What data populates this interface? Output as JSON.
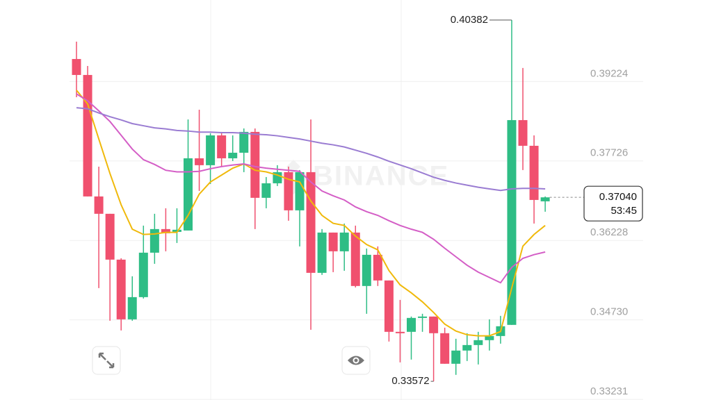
{
  "chart_data": {
    "type": "candlestick",
    "watermark": "BINANCE",
    "up_color": "#2ebd85",
    "down_color": "#f0506e",
    "ylim": [
      0.3322,
      0.4076
    ],
    "yticks": [
      0.39224,
      0.37726,
      0.36228,
      {
        "value": 0.3473,
        "label": "0.34730"
      },
      0.33231
    ],
    "grid": true,
    "open": [
      0.39648,
      0.39347,
      0.37057,
      0.3673,
      0.35866,
      0.3474,
      0.35159,
      0.35997,
      0.36442,
      0.36389,
      0.36415,
      0.37776,
      0.37646,
      0.38208,
      0.37776,
      0.37881,
      0.38274,
      0.37031,
      0.37305,
      0.37515,
      0.36795,
      0.37515,
      0.35617,
      0.36376,
      0.36023,
      0.36376,
      0.35369,
      0.35957,
      0.35473,
      0.34505,
      0.34505,
      0.34767,
      0.34793,
      0.34479,
      0.33903,
      0.34152,
      0.34256,
      0.34348,
      0.34426,
      0.34636,
      0.38496,
      0.38012,
      0.36965
    ],
    "high": [
      0.39975,
      0.39517,
      0.37619,
      0.3673,
      0.35892,
      0.35552,
      0.36507,
      0.3673,
      0.36834,
      0.36834,
      0.38509,
      0.38692,
      0.38248,
      0.38274,
      0.38208,
      0.38339,
      0.38339,
      0.37423,
      0.37646,
      0.37619,
      0.37554,
      0.38509,
      0.36442,
      0.36376,
      0.36546,
      0.36507,
      0.36075,
      0.36115,
      0.35473,
      0.35107,
      0.34793,
      0.34845,
      0.34793,
      0.34583,
      0.34374,
      0.34479,
      0.34505,
      0.3474,
      0.34806,
      0.40382,
      0.39478,
      0.38208,
      0.37057
    ],
    "low": [
      0.38928,
      0.37057,
      0.35329,
      0.34714,
      0.34531,
      0.34714,
      0.35133,
      0.35787,
      0.36023,
      0.3618,
      0.36415,
      0.37161,
      0.37292,
      0.37619,
      0.37724,
      0.37515,
      0.36442,
      0.36834,
      0.37253,
      0.36599,
      0.36115,
      0.34544,
      0.35578,
      0.3563,
      0.35656,
      0.35342,
      0.34845,
      0.35369,
      0.34322,
      0.33929,
      0.33982,
      0.34505,
      0.33572,
      0.33903,
      0.33694,
      0.33955,
      0.3389,
      0.34152,
      0.34282,
      0.34636,
      0.37554,
      0.36546,
      0.36769
    ],
    "close": [
      0.39347,
      0.37057,
      0.3673,
      0.35866,
      0.3474,
      0.35159,
      0.35997,
      0.36442,
      0.36363,
      0.36429,
      0.37776,
      0.37646,
      0.38208,
      0.37776,
      0.37881,
      0.38274,
      0.37031,
      0.37305,
      0.37515,
      0.36795,
      0.37515,
      0.35617,
      0.36376,
      0.36023,
      0.36376,
      0.35369,
      0.35957,
      0.35473,
      0.34505,
      0.34479,
      0.34767,
      0.34793,
      0.34479,
      0.33903,
      0.34152,
      0.34256,
      0.34348,
      0.34426,
      0.3461,
      0.38496,
      0.38012,
      0.36991,
      0.3704
    ],
    "series": [
      {
        "color": "#f0b90b",
        "values": [
          0.3906,
          0.388,
          0.3814,
          0.3749,
          0.369,
          0.3644,
          0.3634,
          0.3635,
          0.3638,
          0.3638,
          0.367,
          0.371,
          0.3733,
          0.3746,
          0.3759,
          0.3767,
          0.3755,
          0.3752,
          0.3746,
          0.3738,
          0.3733,
          0.3697,
          0.367,
          0.3655,
          0.3651,
          0.3631,
          0.3615,
          0.3605,
          0.3566,
          0.3539,
          0.3524,
          0.3507,
          0.3487,
          0.3465,
          0.3452,
          0.3445,
          0.3443,
          0.3443,
          0.3451,
          0.3533,
          0.3612,
          0.3634,
          0.3651
        ]
      },
      {
        "color": "#d45ec6",
        "values": [
          0.3899,
          0.3886,
          0.3867,
          0.3847,
          0.3821,
          0.3795,
          0.3775,
          0.3766,
          0.3755,
          0.3752,
          0.3752,
          0.3753,
          0.3758,
          0.3762,
          0.3765,
          0.3767,
          0.3762,
          0.3759,
          0.3757,
          0.3755,
          0.3753,
          0.3733,
          0.3716,
          0.3707,
          0.3699,
          0.3686,
          0.3677,
          0.367,
          0.366,
          0.3651,
          0.3644,
          0.3638,
          0.3625,
          0.3608,
          0.3592,
          0.3576,
          0.3563,
          0.3553,
          0.3543,
          0.3572,
          0.3589,
          0.3596,
          0.3601
        ]
      },
      {
        "color": "#9a7cd2",
        "values": [
          0.3873,
          0.3871,
          0.3863,
          0.3856,
          0.385,
          0.3843,
          0.3839,
          0.3835,
          0.3833,
          0.383,
          0.3829,
          0.3827,
          0.3827,
          0.3826,
          0.3826,
          0.3825,
          0.3823,
          0.3822,
          0.382,
          0.3817,
          0.3814,
          0.381,
          0.3806,
          0.3803,
          0.3799,
          0.3793,
          0.3787,
          0.378,
          0.3772,
          0.3765,
          0.3758,
          0.375,
          0.3742,
          0.3736,
          0.3731,
          0.3727,
          0.3723,
          0.372,
          0.3717,
          0.372,
          0.3721,
          0.3721,
          0.372
        ]
      }
    ],
    "last_price_label": "0.37040",
    "countdown": "53:45"
  }
}
